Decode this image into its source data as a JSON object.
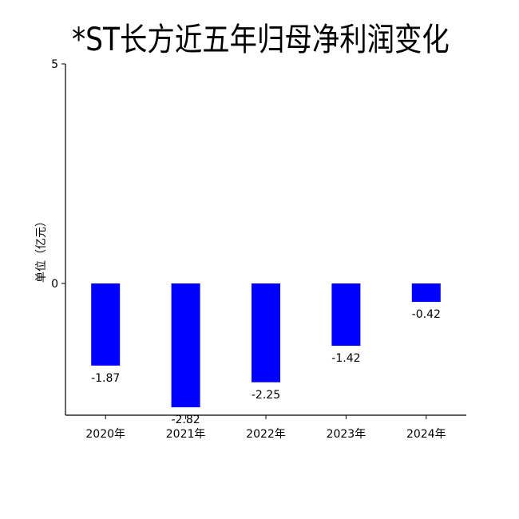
{
  "chart_data": {
    "type": "bar",
    "title": "*ST长方近五年归母净利润变化",
    "xlabel": "",
    "ylabel": "单位（亿元）",
    "categories": [
      "2020年",
      "2021年",
      "2022年",
      "2023年",
      "2024年"
    ],
    "values": [
      -1.87,
      -2.82,
      -2.25,
      -1.42,
      -0.42
    ],
    "value_labels": [
      "-1.87",
      "-2.82",
      "-2.25",
      "-1.42",
      "-0.42"
    ],
    "ylim": [
      -3,
      5
    ],
    "y_ticks": [
      0,
      5
    ],
    "y_tick_labels": [
      "0",
      "5"
    ],
    "bar_color": "#0000ff",
    "grid": false,
    "legend": "none"
  }
}
